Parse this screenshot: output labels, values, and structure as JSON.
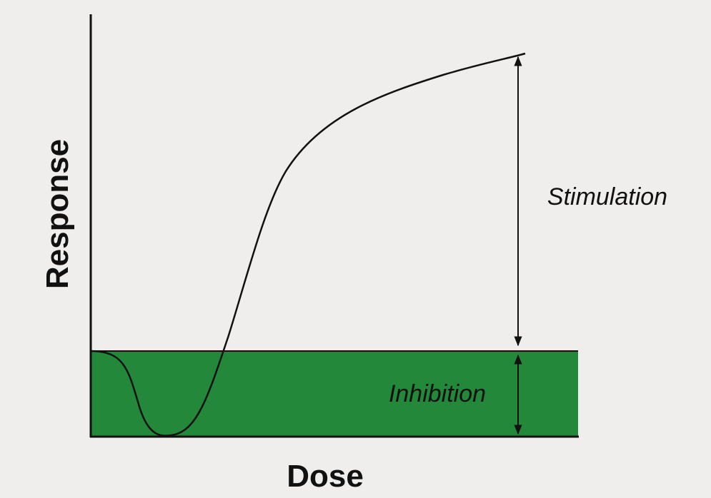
{
  "axes": {
    "y_label": "Response",
    "x_label": "Dose"
  },
  "annotations": {
    "stimulation": "Stimulation",
    "inhibition": "Inhibition"
  }
}
